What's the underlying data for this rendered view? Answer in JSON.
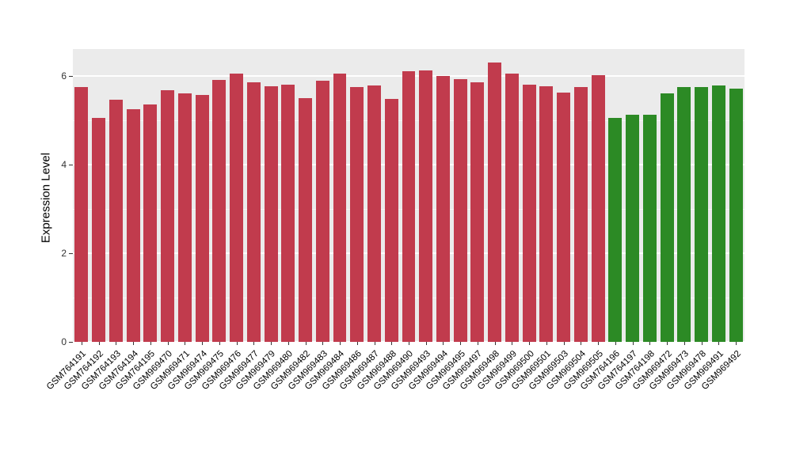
{
  "chart_data": {
    "type": "bar",
    "title": "",
    "xlabel": "",
    "ylabel": "Expression Level",
    "ylim": [
      0,
      6.6
    ],
    "yticks": [
      0,
      2,
      4,
      6
    ],
    "grid_major": [
      0,
      2,
      4,
      6
    ],
    "grid_minor": [
      1,
      3,
      5
    ],
    "legend": "none",
    "panel_background": "#EBEBEB",
    "gridline_color": "#FFFFFF",
    "palette": [
      "#C13B4D",
      "#2C8A25"
    ],
    "categories": [
      "GSM764191",
      "GSM764192",
      "GSM764193",
      "GSM764194",
      "GSM764195",
      "GSM969470",
      "GSM969471",
      "GSM969474",
      "GSM969475",
      "GSM969476",
      "GSM969477",
      "GSM969479",
      "GSM969480",
      "GSM969482",
      "GSM969483",
      "GSM969484",
      "GSM969486",
      "GSM969487",
      "GSM969488",
      "GSM969490",
      "GSM969493",
      "GSM969494",
      "GSM969495",
      "GSM969497",
      "GSM969498",
      "GSM969499",
      "GSM969500",
      "GSM969501",
      "GSM969503",
      "GSM969504",
      "GSM969505",
      "GSM764196",
      "GSM764197",
      "GSM764198",
      "GSM969472",
      "GSM969473",
      "GSM969478",
      "GSM969491",
      "GSM969492"
    ],
    "values": [
      5.75,
      5.05,
      5.45,
      5.25,
      5.35,
      5.68,
      5.6,
      5.57,
      5.9,
      6.05,
      5.85,
      5.76,
      5.8,
      5.5,
      5.88,
      6.05,
      5.75,
      5.78,
      5.48,
      6.1,
      6.12,
      6.0,
      5.92,
      5.85,
      6.3,
      6.05,
      5.8,
      5.76,
      5.62,
      5.75,
      6.02,
      5.05,
      5.12,
      5.12,
      5.6,
      5.75,
      5.75,
      5.78,
      5.7
    ],
    "bar_groups": [
      0,
      0,
      0,
      0,
      0,
      0,
      0,
      0,
      0,
      0,
      0,
      0,
      0,
      0,
      0,
      0,
      0,
      0,
      0,
      0,
      0,
      0,
      0,
      0,
      0,
      0,
      0,
      0,
      0,
      0,
      0,
      1,
      1,
      1,
      1,
      1,
      1,
      1,
      1
    ]
  }
}
